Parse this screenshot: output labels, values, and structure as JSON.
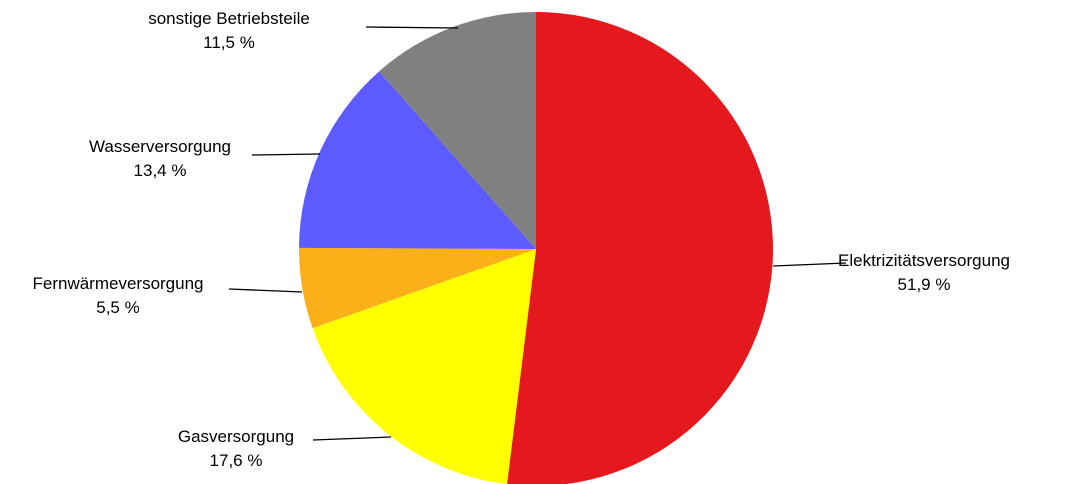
{
  "chart_data": {
    "type": "pie",
    "slices": [
      {
        "label": "Elektrizitätsversorgung",
        "value": 51.9,
        "value_label": "51,9 %",
        "color": "#e5191d"
      },
      {
        "label": "Gasversorgung",
        "value": 17.6,
        "value_label": "17,6 %",
        "color": "#ffff00"
      },
      {
        "label": "Fernwärmeversorgung",
        "value": 5.5,
        "value_label": "5,5 %",
        "color": "#fbaf19"
      },
      {
        "label": "Wasserversorgung",
        "value": 13.4,
        "value_label": "13,4 %",
        "color": "#5b5bff"
      },
      {
        "label": "sonstige Betriebsteile",
        "value": 11.5,
        "value_label": "11,5 %",
        "color": "#808080"
      }
    ],
    "start_angle": "12 o'clock",
    "direction": "clockwise",
    "legend": "none"
  }
}
